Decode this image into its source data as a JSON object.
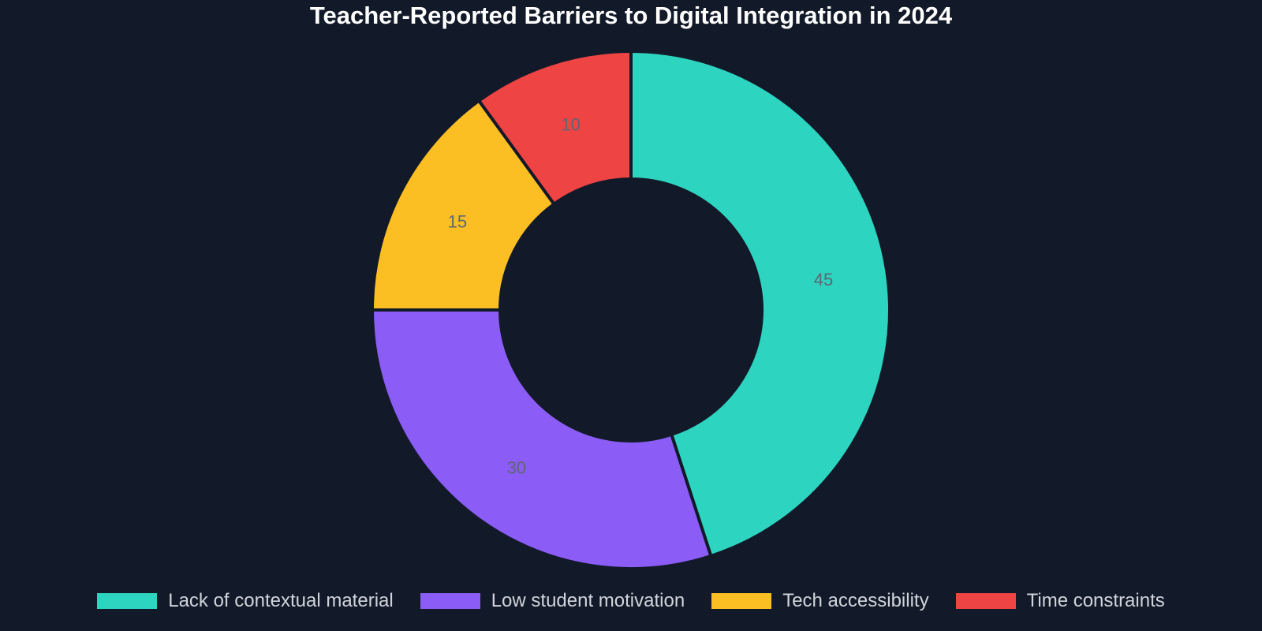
{
  "chart_data": {
    "type": "pie",
    "variant": "donut",
    "title": "Teacher-Reported Barriers to Digital Integration in 2024",
    "categories": [
      "Lack of contextual material",
      "Low student motivation",
      "Tech accessibility",
      "Time constraints"
    ],
    "values": [
      45,
      30,
      15,
      10
    ],
    "colors": [
      "#2dd4bf",
      "#8b5cf6",
      "#fbbf24",
      "#ef4444"
    ],
    "data_labels": [
      "45",
      "30",
      "15",
      "10"
    ],
    "start_angle": "12 o'clock",
    "direction": "clockwise",
    "legend_position": "bottom"
  },
  "theme": {
    "background": "#121928"
  }
}
